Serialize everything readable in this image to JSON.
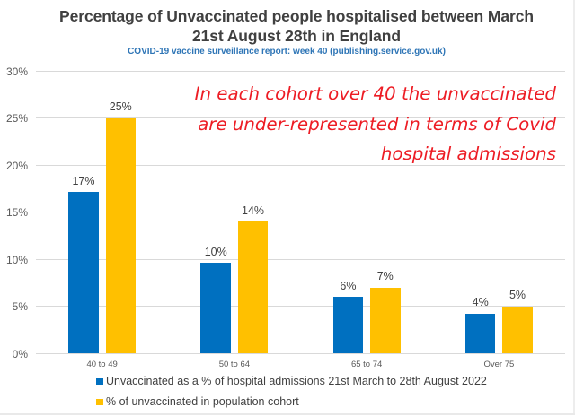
{
  "title": {
    "line1": "Percentage of Unvaccinated people hospitalised between March",
    "line2": "21st August 28th in England",
    "subtitle": "COVID-19 vaccine surveillance report: week 40 (publishing.service.gov.uk)"
  },
  "annotation": {
    "line1": "In each cohort over 40 the unvaccinated",
    "line2": "are under-represented in terms of Covid",
    "line3": "hospital admissions",
    "color": "#ed1c24"
  },
  "chart_data": {
    "type": "bar",
    "categories": [
      "40 to 49",
      "50 to 64",
      "65 to 74",
      "Over 75"
    ],
    "series": [
      {
        "name": "Unvaccinated as a % of hospital admissions 21st March to 28th August 2022",
        "color": "#0070c0",
        "values": [
          17.1,
          9.6,
          6.0,
          4.2
        ],
        "labels": [
          "17%",
          "10%",
          "6%",
          "4%"
        ]
      },
      {
        "name": "% of unvaccinated in population cohort",
        "color": "#ffc000",
        "values": [
          25.0,
          14.0,
          7.0,
          5.0
        ],
        "labels": [
          "25%",
          "14%",
          "7%",
          "5%"
        ]
      }
    ],
    "y_axis": {
      "min": 0,
      "max": 30,
      "step": 5,
      "tick_labels": [
        "0%",
        "5%",
        "10%",
        "15%",
        "20%",
        "25%",
        "30%"
      ]
    },
    "grid": true,
    "legend_position": "bottom-left",
    "gridline_color": "#d9d9d9"
  }
}
